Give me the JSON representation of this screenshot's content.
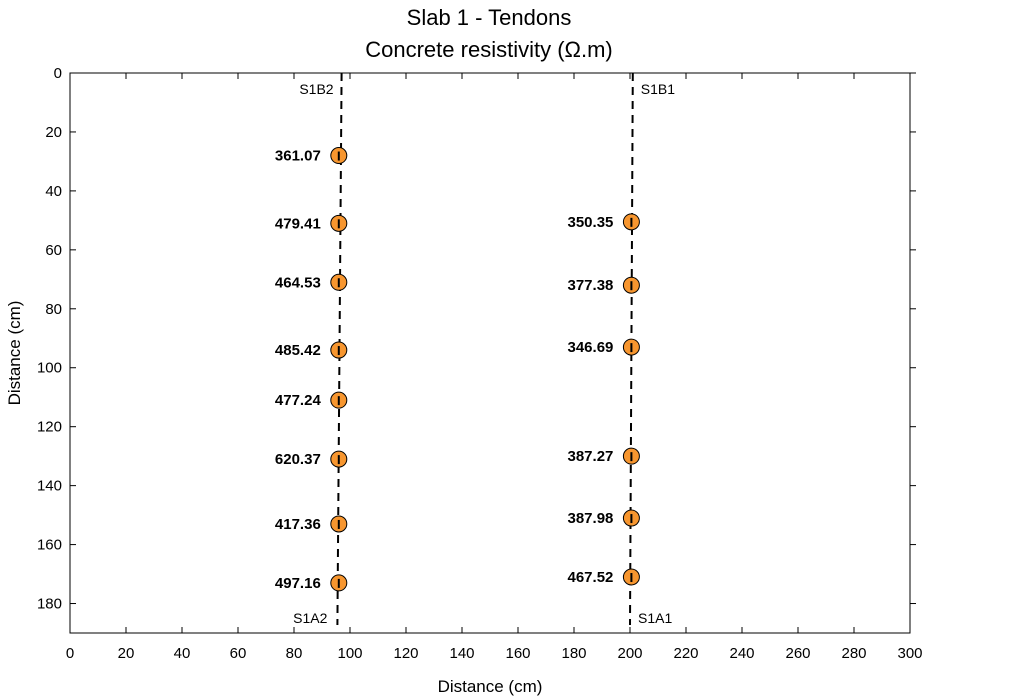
{
  "chart_data": {
    "type": "scatter",
    "title": "Slab 1 - Tendons",
    "subtitle": "Concrete resistivity (Ω.m)",
    "xlabel": "Distance (cm)",
    "ylabel": "Distance (cm)",
    "xlim": [
      0,
      300
    ],
    "ylim": [
      0,
      190
    ],
    "y_inverted": true,
    "x_ticks": [
      "0",
      "20",
      "40",
      "60",
      "80",
      "100",
      "120",
      "140",
      "160",
      "180",
      "200",
      "220",
      "240",
      "260",
      "280",
      "300"
    ],
    "y_ticks": [
      "0",
      "20",
      "40",
      "60",
      "80",
      "100",
      "120",
      "140",
      "160",
      "180"
    ],
    "grid": false,
    "marker_color": "#F7962F",
    "reference_lines": [
      {
        "top_label": "S1B2",
        "bottom_label": "S1A2",
        "x_top": 97,
        "x_bottom": 95.5
      },
      {
        "top_label": "S1B1",
        "bottom_label": "S1A1",
        "x_top": 201,
        "x_bottom": 200
      }
    ],
    "series": [
      {
        "points": [
          {
            "x": 96,
            "y": 28,
            "label": "361.07"
          },
          {
            "x": 96,
            "y": 51,
            "label": "479.41"
          },
          {
            "x": 96,
            "y": 71,
            "label": "464.53"
          },
          {
            "x": 96,
            "y": 94,
            "label": "485.42"
          },
          {
            "x": 96,
            "y": 111,
            "label": "477.24"
          },
          {
            "x": 96,
            "y": 131,
            "label": "620.37"
          },
          {
            "x": 96,
            "y": 153,
            "label": "417.36"
          },
          {
            "x": 96,
            "y": 173,
            "label": "497.16"
          }
        ]
      },
      {
        "points": [
          {
            "x": 200.5,
            "y": 50.5,
            "label": "350.35"
          },
          {
            "x": 200.5,
            "y": 72,
            "label": "377.38"
          },
          {
            "x": 200.5,
            "y": 93,
            "label": "346.69"
          },
          {
            "x": 200.5,
            "y": 130,
            "label": "387.27"
          },
          {
            "x": 200.5,
            "y": 151,
            "label": "387.98"
          },
          {
            "x": 200.5,
            "y": 171,
            "label": "467.52"
          }
        ]
      }
    ]
  }
}
